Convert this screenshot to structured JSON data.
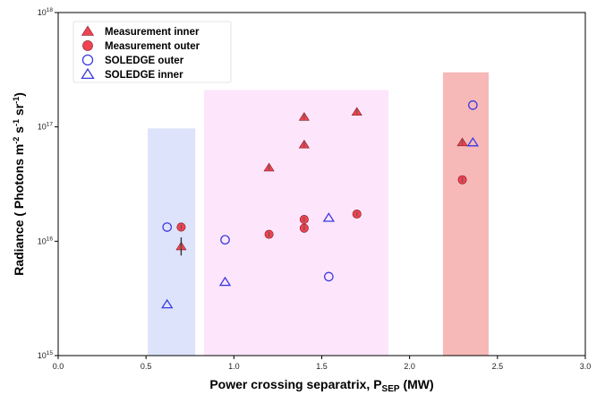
{
  "chart_data": {
    "type": "scatter",
    "xlabel": {
      "main": "Power crossing separatrix, P",
      "sub": "SEP",
      "unit": " (MW)"
    },
    "ylabel": {
      "main": "Radiance ( Photons m",
      "sup1": "-2",
      "mid1": " s",
      "sup2": "-1",
      "mid2": " sr",
      "sup3": "-1",
      "end": ")"
    },
    "xlim": [
      0.0,
      3.0
    ],
    "ylim": [
      1000000000000000.0,
      1e+18
    ],
    "yscale": "log",
    "x_ticks": [
      "0.0",
      "0.5",
      "1.0",
      "1.5",
      "2.0",
      "2.5",
      "3.0"
    ],
    "y_ticks": [
      {
        "base": "10",
        "exp": "15"
      },
      {
        "base": "10",
        "exp": "16"
      },
      {
        "base": "10",
        "exp": "17"
      },
      {
        "base": "10",
        "exp": "18"
      }
    ],
    "grid": false,
    "legend_position": "top-left",
    "regions": [
      {
        "x": [
          0.51,
          0.78
        ],
        "y": [
          1000000000000000.0,
          9.7e+16
        ],
        "color": "#dde3fb"
      },
      {
        "x": [
          0.83,
          1.88
        ],
        "y": [
          1000000000000000.0,
          2.1e+17
        ],
        "color": "#fde6fb"
      },
      {
        "x": [
          2.19,
          2.45
        ],
        "y": [
          1000000000000000.0,
          3e+17
        ],
        "color": "#f7b8b8"
      }
    ],
    "series": [
      {
        "name": "Measurement inner",
        "marker": "filled-triangle",
        "color": "#f04352",
        "points": [
          {
            "x": 0.7,
            "y": 9000000000000000.0,
            "err_low": 7500000000000000.0,
            "err_high": 1.08e+16
          },
          {
            "x": 1.2,
            "y": 4.4e+16
          },
          {
            "x": 1.4,
            "y": 1.22e+17
          },
          {
            "x": 1.4,
            "y": 7e+16
          },
          {
            "x": 1.7,
            "y": 1.35e+17
          },
          {
            "x": 2.3,
            "y": 7.3e+16
          }
        ]
      },
      {
        "name": "Measurement outer",
        "marker": "filled-circle",
        "color": "#f04352",
        "points": [
          {
            "x": 0.7,
            "y": 1.33e+16
          },
          {
            "x": 1.2,
            "y": 1.15e+16
          },
          {
            "x": 1.4,
            "y": 1.55e+16
          },
          {
            "x": 1.4,
            "y": 1.3e+16
          },
          {
            "x": 1.7,
            "y": 1.73e+16
          },
          {
            "x": 2.3,
            "y": 3.45e+16
          }
        ]
      },
      {
        "name": "SOLEDGE outer",
        "marker": "open-circle",
        "color": "#3a3adf",
        "points": [
          {
            "x": 0.62,
            "y": 1.33e+16
          },
          {
            "x": 0.95,
            "y": 1.03e+16
          },
          {
            "x": 1.54,
            "y": 4900000000000000.0
          },
          {
            "x": 2.36,
            "y": 1.55e+17
          }
        ]
      },
      {
        "name": "SOLEDGE inner",
        "marker": "open-triangle",
        "color": "#3a3adf",
        "points": [
          {
            "x": 0.62,
            "y": 2800000000000000.0
          },
          {
            "x": 0.95,
            "y": 4400000000000000.0
          },
          {
            "x": 1.54,
            "y": 1.6e+16
          },
          {
            "x": 2.36,
            "y": 7.3e+16
          }
        ]
      }
    ]
  }
}
